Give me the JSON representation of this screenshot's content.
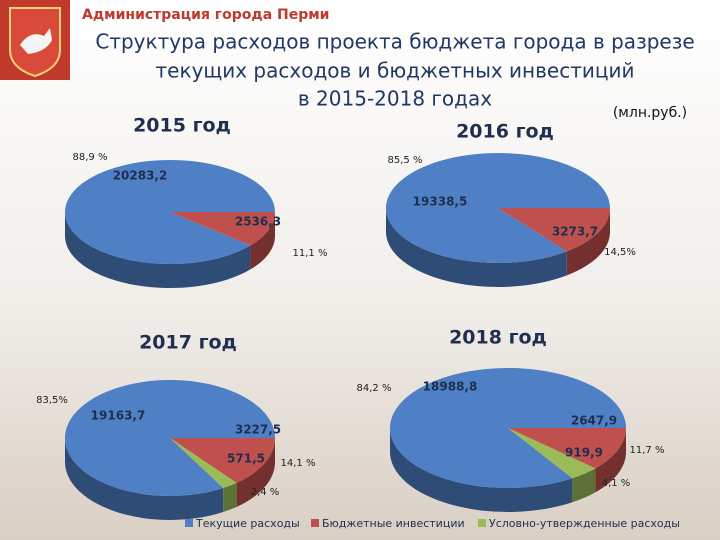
{
  "header": {
    "org": "Администрация города Перми",
    "title": [
      "Структура расходов проекта бюджета города в разрезе",
      "текущих расходов и бюджетных инвестиций",
      "в 2015-2018 годах"
    ],
    "unit": "(млн.руб.)"
  },
  "chart_data": [
    {
      "type": "pie",
      "title": "2015 год",
      "categories": [
        "Текущие расходы",
        "Бюджетные инвестиции"
      ],
      "values": [
        20283.2,
        2536.3
      ],
      "value_labels": [
        "20283,2",
        "2536,3"
      ],
      "percent_labels": [
        "88,9 %",
        "11,1 %"
      ],
      "colors": [
        "#4f7fc4",
        "#c0504d"
      ]
    },
    {
      "type": "pie",
      "title": "2016 год",
      "categories": [
        "Текущие расходы",
        "Бюджетные инвестиции"
      ],
      "values": [
        19338.5,
        3273.7
      ],
      "value_labels": [
        "19338,5",
        "3273,7"
      ],
      "percent_labels": [
        "85,5 %",
        "14,5%"
      ],
      "colors": [
        "#4f7fc4",
        "#c0504d"
      ]
    },
    {
      "type": "pie",
      "title": "2017 год",
      "categories": [
        "Текущие расходы",
        "Бюджетные инвестиции",
        "Условно-утвержденные расходы"
      ],
      "values": [
        19163.7,
        3227.5,
        571.5
      ],
      "value_labels": [
        "19163,7",
        "3227,5",
        "571,5"
      ],
      "percent_labels": [
        "83,5%",
        "14,1 %",
        "2,4 %"
      ],
      "colors": [
        "#4f7fc4",
        "#c0504d",
        "#9bbb59"
      ]
    },
    {
      "type": "pie",
      "title": "2018 год",
      "categories": [
        "Текущие расходы",
        "Бюджетные инвестиции",
        "Условно-утвержденные расходы"
      ],
      "values": [
        18988.8,
        2647.9,
        919.9
      ],
      "value_labels": [
        "18988,8",
        "2647,9",
        "919,9"
      ],
      "percent_labels": [
        "84,2 %",
        "11,7 %",
        "4,1 %"
      ],
      "colors": [
        "#4f7fc4",
        "#c0504d",
        "#9bbb59"
      ]
    }
  ]
}
